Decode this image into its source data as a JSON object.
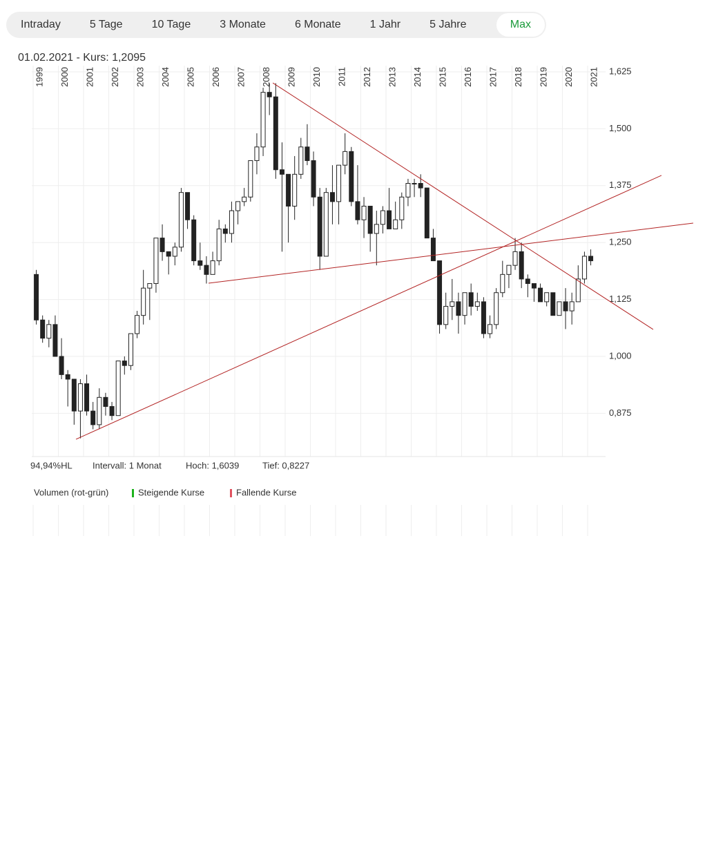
{
  "tabs": [
    "Intraday",
    "5 Tage",
    "10 Tage",
    "3 Monate",
    "6 Monate",
    "1 Jahr",
    "5 Jahre",
    "Max"
  ],
  "selected_tab": 7,
  "chart_data": {
    "type": "candlestick",
    "title": "01.02.2021  -  Kurs: 1,2095",
    "xlim": [
      1999,
      2021.7
    ],
    "ylim": [
      0.78,
      1.64
    ],
    "xticks": [
      1999,
      2000,
      2001,
      2002,
      2003,
      2004,
      2005,
      2006,
      2007,
      2008,
      2009,
      2010,
      2011,
      2012,
      2013,
      2014,
      2015,
      2016,
      2017,
      2018,
      2019,
      2020,
      2021
    ],
    "yticks": [
      {
        "value": 0.875,
        "label": "0,875"
      },
      {
        "value": 1.0,
        "label": "1,000"
      },
      {
        "value": 1.125,
        "label": "1,125"
      },
      {
        "value": 1.25,
        "label": "1,250"
      },
      {
        "value": 1.375,
        "label": "1,375"
      },
      {
        "value": 1.5,
        "label": "1,500"
      },
      {
        "value": 1.625,
        "label": "1,625"
      }
    ],
    "grid": true,
    "up_color": "#ffffff",
    "down_color": "#222222",
    "x": [
      1999,
      1999.25,
      1999.5,
      1999.75,
      2000,
      2000.25,
      2000.5,
      2000.75,
      2001,
      2001.25,
      2001.5,
      2001.75,
      2002,
      2002.25,
      2002.5,
      2002.75,
      2003,
      2003.25,
      2003.5,
      2003.75,
      2004,
      2004.25,
      2004.5,
      2004.75,
      2005,
      2005.25,
      2005.5,
      2005.75,
      2006,
      2006.25,
      2006.5,
      2006.75,
      2007,
      2007.25,
      2007.5,
      2007.75,
      2008,
      2008.25,
      2008.5,
      2008.75,
      2009,
      2009.25,
      2009.5,
      2009.75,
      2010,
      2010.25,
      2010.5,
      2010.75,
      2011,
      2011.25,
      2011.5,
      2011.75,
      2012,
      2012.25,
      2012.5,
      2012.75,
      2013,
      2013.25,
      2013.5,
      2013.75,
      2014,
      2014.25,
      2014.5,
      2014.75,
      2015,
      2015.25,
      2015.5,
      2015.75,
      2016,
      2016.25,
      2016.5,
      2016.75,
      2017,
      2017.25,
      2017.5,
      2017.75,
      2018,
      2018.25,
      2018.5,
      2018.75,
      2019,
      2019.25,
      2019.5,
      2019.75,
      2020,
      2020.25,
      2020.5,
      2020.75,
      2021
    ],
    "ohlc": [
      [
        1.18,
        1.19,
        1.07,
        1.08
      ],
      [
        1.08,
        1.09,
        1.03,
        1.04
      ],
      [
        1.04,
        1.08,
        1.02,
        1.07
      ],
      [
        1.07,
        1.09,
        1.0,
        1.0
      ],
      [
        1.0,
        1.04,
        0.95,
        0.96
      ],
      [
        0.96,
        0.97,
        0.89,
        0.95
      ],
      [
        0.95,
        0.95,
        0.85,
        0.88
      ],
      [
        0.88,
        0.95,
        0.82,
        0.94
      ],
      [
        0.94,
        0.96,
        0.87,
        0.88
      ],
      [
        0.88,
        0.9,
        0.84,
        0.85
      ],
      [
        0.85,
        0.93,
        0.84,
        0.91
      ],
      [
        0.91,
        0.92,
        0.87,
        0.89
      ],
      [
        0.89,
        0.9,
        0.86,
        0.87
      ],
      [
        0.87,
        0.99,
        0.87,
        0.99
      ],
      [
        0.99,
        1.0,
        0.96,
        0.98
      ],
      [
        0.98,
        1.05,
        0.97,
        1.05
      ],
      [
        1.05,
        1.1,
        1.04,
        1.09
      ],
      [
        1.09,
        1.19,
        1.07,
        1.15
      ],
      [
        1.15,
        1.16,
        1.08,
        1.16
      ],
      [
        1.16,
        1.26,
        1.14,
        1.26
      ],
      [
        1.26,
        1.29,
        1.21,
        1.23
      ],
      [
        1.23,
        1.23,
        1.18,
        1.22
      ],
      [
        1.22,
        1.25,
        1.2,
        1.24
      ],
      [
        1.24,
        1.37,
        1.23,
        1.36
      ],
      [
        1.36,
        1.36,
        1.28,
        1.3
      ],
      [
        1.3,
        1.31,
        1.2,
        1.21
      ],
      [
        1.21,
        1.25,
        1.19,
        1.2
      ],
      [
        1.2,
        1.22,
        1.16,
        1.18
      ],
      [
        1.18,
        1.23,
        1.18,
        1.21
      ],
      [
        1.21,
        1.3,
        1.2,
        1.28
      ],
      [
        1.28,
        1.29,
        1.25,
        1.27
      ],
      [
        1.27,
        1.34,
        1.25,
        1.32
      ],
      [
        1.32,
        1.34,
        1.29,
        1.34
      ],
      [
        1.34,
        1.37,
        1.33,
        1.35
      ],
      [
        1.35,
        1.43,
        1.34,
        1.43
      ],
      [
        1.43,
        1.49,
        1.4,
        1.46
      ],
      [
        1.46,
        1.59,
        1.44,
        1.58
      ],
      [
        1.58,
        1.6,
        1.53,
        1.57
      ],
      [
        1.57,
        1.6,
        1.39,
        1.41
      ],
      [
        1.41,
        1.47,
        1.23,
        1.4
      ],
      [
        1.4,
        1.4,
        1.25,
        1.33
      ],
      [
        1.33,
        1.44,
        1.3,
        1.4
      ],
      [
        1.4,
        1.48,
        1.39,
        1.46
      ],
      [
        1.46,
        1.51,
        1.42,
        1.43
      ],
      [
        1.43,
        1.45,
        1.33,
        1.35
      ],
      [
        1.35,
        1.37,
        1.19,
        1.22
      ],
      [
        1.22,
        1.37,
        1.22,
        1.36
      ],
      [
        1.36,
        1.42,
        1.29,
        1.34
      ],
      [
        1.34,
        1.42,
        1.29,
        1.42
      ],
      [
        1.42,
        1.49,
        1.4,
        1.45
      ],
      [
        1.45,
        1.46,
        1.33,
        1.34
      ],
      [
        1.34,
        1.42,
        1.29,
        1.3
      ],
      [
        1.3,
        1.35,
        1.26,
        1.33
      ],
      [
        1.33,
        1.33,
        1.23,
        1.27
      ],
      [
        1.27,
        1.32,
        1.2,
        1.29
      ],
      [
        1.29,
        1.33,
        1.27,
        1.32
      ],
      [
        1.32,
        1.37,
        1.28,
        1.28
      ],
      [
        1.28,
        1.34,
        1.28,
        1.3
      ],
      [
        1.3,
        1.36,
        1.28,
        1.35
      ],
      [
        1.35,
        1.39,
        1.33,
        1.38
      ],
      [
        1.38,
        1.39,
        1.35,
        1.38
      ],
      [
        1.38,
        1.4,
        1.35,
        1.37
      ],
      [
        1.37,
        1.37,
        1.26,
        1.26
      ],
      [
        1.26,
        1.28,
        1.21,
        1.21
      ],
      [
        1.21,
        1.21,
        1.05,
        1.07
      ],
      [
        1.07,
        1.14,
        1.06,
        1.11
      ],
      [
        1.11,
        1.17,
        1.08,
        1.12
      ],
      [
        1.12,
        1.14,
        1.05,
        1.09
      ],
      [
        1.09,
        1.14,
        1.07,
        1.14
      ],
      [
        1.14,
        1.16,
        1.09,
        1.11
      ],
      [
        1.11,
        1.14,
        1.1,
        1.12
      ],
      [
        1.12,
        1.13,
        1.04,
        1.05
      ],
      [
        1.05,
        1.09,
        1.04,
        1.07
      ],
      [
        1.07,
        1.15,
        1.06,
        1.14
      ],
      [
        1.14,
        1.21,
        1.13,
        1.18
      ],
      [
        1.18,
        1.2,
        1.15,
        1.2
      ],
      [
        1.2,
        1.26,
        1.19,
        1.23
      ],
      [
        1.23,
        1.25,
        1.15,
        1.17
      ],
      [
        1.17,
        1.18,
        1.13,
        1.16
      ],
      [
        1.16,
        1.16,
        1.12,
        1.15
      ],
      [
        1.15,
        1.16,
        1.12,
        1.12
      ],
      [
        1.12,
        1.14,
        1.11,
        1.14
      ],
      [
        1.14,
        1.14,
        1.09,
        1.09
      ],
      [
        1.09,
        1.12,
        1.09,
        1.12
      ],
      [
        1.12,
        1.15,
        1.06,
        1.1
      ],
      [
        1.1,
        1.14,
        1.07,
        1.12
      ],
      [
        1.12,
        1.2,
        1.12,
        1.17
      ],
      [
        1.17,
        1.23,
        1.16,
        1.22
      ],
      [
        1.22,
        1.235,
        1.2,
        1.21
      ]
    ],
    "trendlines": [
      {
        "x": [
          2008.51,
          2023.6
        ],
        "y": [
          1.6007,
          1.0592
        ]
      },
      {
        "x": [
          2000.7,
          2023.93
        ],
        "y": [
          0.818,
          1.3975
        ]
      },
      {
        "x": [
          2005.96,
          2025.19
        ],
        "y": [
          1.1608,
          1.2928
        ]
      }
    ],
    "trendline_color": "#b22222",
    "stats": [
      "94,94%HL",
      "Intervall: 1 Monat",
      "Hoch: 1,6039",
      "Tief: 0,8227"
    ],
    "volume_title": "Volumen (rot-grün)",
    "volume_legend": [
      {
        "name": "Steigende Kurse",
        "color": "#1db31d"
      },
      {
        "name": "Fallende Kurse",
        "color": "#e0525f"
      }
    ]
  }
}
